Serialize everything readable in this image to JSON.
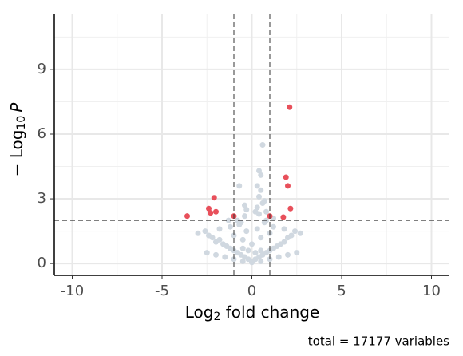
{
  "chart_data": {
    "type": "scatter",
    "xlabel": [
      "Log",
      "2",
      " fold change"
    ],
    "ylabel": [
      "− Log",
      "10",
      "P"
    ],
    "caption": "total = 17177 variables",
    "xlim": [
      -11,
      11
    ],
    "ylim": [
      -0.55,
      11.55
    ],
    "xticks": [
      -10,
      -5,
      0,
      5,
      10
    ],
    "yticks": [
      0,
      3,
      6,
      9
    ],
    "minor_xticks": [
      -7.5,
      -2.5,
      2.5,
      7.5
    ],
    "minor_yticks": [
      1.5,
      4.5,
      7.5,
      10.5
    ],
    "grid": true,
    "vlines": [
      -1,
      1
    ],
    "hlines": [
      2
    ],
    "series": [
      {
        "color": "#d0d8e0",
        "x": [
          -3.0,
          -2.6,
          -2.4,
          -2.2,
          -2.0,
          -1.8,
          -1.6,
          -1.4,
          -1.2,
          -1.0,
          -0.8,
          -0.6,
          -0.4,
          -0.2,
          0,
          0.2,
          0.4,
          0.6,
          0.8,
          1.0,
          1.2,
          1.4,
          1.6,
          1.8,
          2.0,
          2.2,
          2.4,
          2.7,
          -2.5,
          -2.0,
          -1.5,
          -1.0,
          -0.5,
          0,
          0.5,
          1.0,
          1.5,
          2.0,
          2.5,
          -1.8,
          -1.2,
          -0.7,
          -0.3,
          0.3,
          0.7,
          1.2,
          1.8,
          -1.0,
          -0.5,
          0,
          0.5,
          1.0,
          -0.8,
          -0.4,
          0.2,
          0.4,
          0.8,
          -0.5,
          -0.2,
          0.2,
          0.5,
          -0.7,
          0.6,
          0.4,
          0.5,
          0.3,
          0.4,
          0.6,
          -0.3,
          0.7,
          -0.6,
          0.3,
          0.5,
          0.8,
          -0.4,
          1.2,
          -1.3
        ],
        "y": [
          1.4,
          1.5,
          1.3,
          1.2,
          1.0,
          1.1,
          0.9,
          0.8,
          0.7,
          0.6,
          0.5,
          0.4,
          0.3,
          0.2,
          0.1,
          0.2,
          0.3,
          0.4,
          0.5,
          0.6,
          0.7,
          0.8,
          0.9,
          1.0,
          1.2,
          1.3,
          1.5,
          1.4,
          0.5,
          0.4,
          0.3,
          0.2,
          0.1,
          0.05,
          0.1,
          0.2,
          0.3,
          0.4,
          0.5,
          1.6,
          1.7,
          1.8,
          1.5,
          1.6,
          1.9,
          1.7,
          1.6,
          1.3,
          1.1,
          0.9,
          1.2,
          1.4,
          2.0,
          2.2,
          2.4,
          2.3,
          2.0,
          0.7,
          0.6,
          0.5,
          0.6,
          3.6,
          5.5,
          4.3,
          4.1,
          3.6,
          3.1,
          2.8,
          2.5,
          2.9,
          1.9,
          2.6,
          3.4,
          2.4,
          2.7,
          2.1,
          2.0
        ]
      },
      {
        "color": "#e8505b",
        "x": [
          -3.6,
          -2.4,
          -2.3,
          -2.1,
          -2.0,
          -1.0,
          1.0,
          1.75,
          1.9,
          2.0,
          2.1,
          2.15
        ],
        "y": [
          2.2,
          2.55,
          2.35,
          3.05,
          2.4,
          2.2,
          2.2,
          2.15,
          4.0,
          3.6,
          7.25,
          2.55
        ]
      }
    ]
  }
}
